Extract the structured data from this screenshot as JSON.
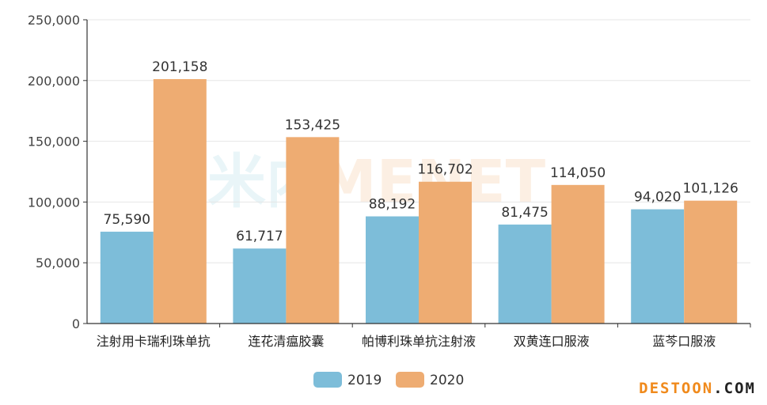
{
  "chart_data": {
    "type": "bar",
    "categories": [
      "注射用卡瑞利珠单抗",
      "连花清瘟胶囊",
      "帕博利珠单抗注射液",
      "双黄连口服液",
      "蓝芩口服液"
    ],
    "series": [
      {
        "name": "2019",
        "values": [
          75590,
          61717,
          88192,
          81475,
          94020
        ],
        "labels": [
          "75,590",
          "61,717",
          "88,192",
          "81,475",
          "94,020"
        ],
        "color": "#7dbdd9"
      },
      {
        "name": "2020",
        "values": [
          201158,
          153425,
          116702,
          114050,
          101126
        ],
        "labels": [
          "201,158",
          "153,425",
          "116,702",
          "114,050",
          "101,126"
        ],
        "color": "#eeac72"
      }
    ],
    "yticks": [
      "0",
      "50,000",
      "100,000",
      "150,000",
      "200,000",
      "250,000"
    ],
    "ylim": [
      0,
      250000
    ],
    "grid": true,
    "legend_position": "bottom-center"
  },
  "watermark": {
    "cn": "米内",
    "en": "MENET"
  },
  "site_mark": {
    "name": "DESTOON",
    "tld": ".COM"
  }
}
